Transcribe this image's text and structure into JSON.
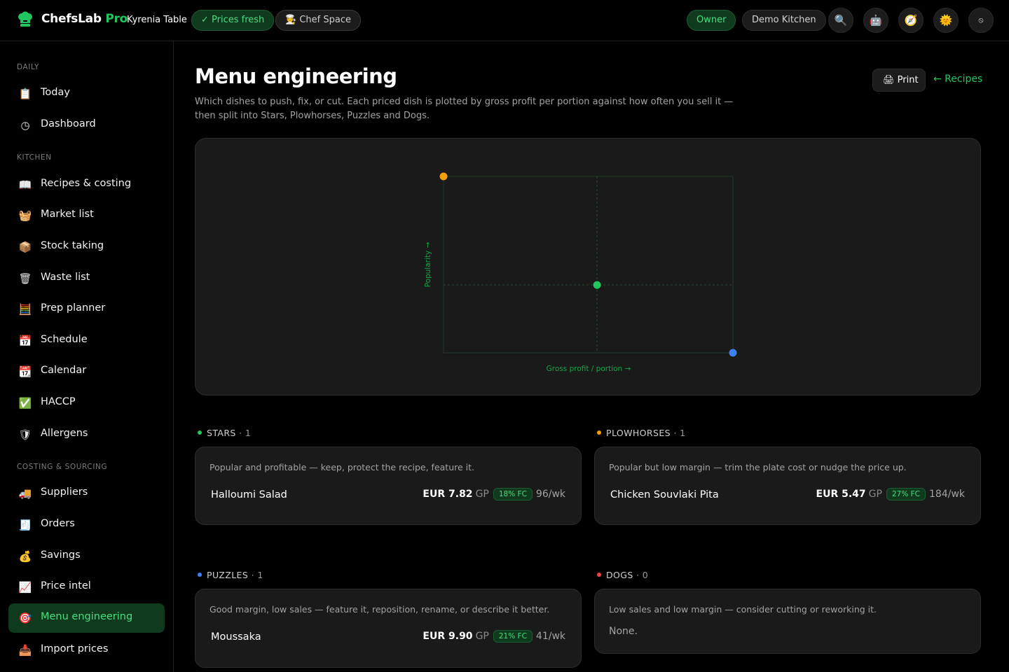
{
  "header": {
    "brand": "ChefsLab",
    "brand_suffix": "Pro",
    "kitchen": "Kyrenia Table",
    "prices_status": "✓ Prices fresh",
    "chef_space": "Chef Space",
    "role": "Owner",
    "demo": "Demo Kitchen"
  },
  "sidebar": {
    "sections": [
      {
        "label": "DAILY"
      },
      {
        "label": "KITCHEN"
      },
      {
        "label": "COSTING & SOURCING"
      }
    ],
    "items": [
      {
        "label": "Today",
        "icon": "📋"
      },
      {
        "label": "Dashboard",
        "icon": "◷"
      },
      {
        "label": "Recipes & costing",
        "icon": "📖"
      },
      {
        "label": "Market list",
        "icon": "🧺"
      },
      {
        "label": "Stock taking",
        "icon": "📦"
      },
      {
        "label": "Waste list",
        "icon": "🗑"
      },
      {
        "label": "Prep planner",
        "icon": "🧮"
      },
      {
        "label": "Schedule",
        "icon": "📅"
      },
      {
        "label": "Calendar",
        "icon": "📆"
      },
      {
        "label": "HACCP",
        "icon": "✅"
      },
      {
        "label": "Allergens",
        "icon": "🛡"
      },
      {
        "label": "Suppliers",
        "icon": "🚚"
      },
      {
        "label": "Orders",
        "icon": "🧾"
      },
      {
        "label": "Savings",
        "icon": "💰"
      },
      {
        "label": "Price intel",
        "icon": "📈"
      },
      {
        "label": "Menu engineering",
        "icon": "🎯"
      },
      {
        "label": "Import prices",
        "icon": "📥"
      }
    ]
  },
  "main": {
    "title": "Menu engineering",
    "description": "Which dishes to push, fix, or cut. Each priced dish is plotted by gross profit per portion against how often you sell it — then split into Stars, Plowhorses, Puzzles and Dogs.",
    "print_label": "Print",
    "back_link": "← Recipes"
  },
  "chart_data": {
    "type": "scatter",
    "xlabel": "Gross profit / portion →",
    "ylabel": "Popularity →",
    "points": [
      {
        "name": "Chicken Souvlaki Pita",
        "quadrant": "Plowhorses",
        "gp": 5.47,
        "popularity": 184,
        "color": "#f59e0b"
      },
      {
        "name": "Halloumi Salad",
        "quadrant": "Stars",
        "gp": 7.82,
        "popularity": 96,
        "color": "#22c55e"
      },
      {
        "name": "Moussaka",
        "quadrant": "Puzzles",
        "gp": 9.9,
        "popularity": 41,
        "color": "#3b82f6"
      }
    ],
    "grid": true
  },
  "groups": {
    "stars": {
      "title": "STARS",
      "count": "· 1",
      "color": "#22c55e",
      "description": "Popular and profitable — keep, protect the recipe, feature it.",
      "dish": "Halloumi Salad",
      "price": "EUR 7.82",
      "gp": "GP",
      "fc": "18% FC",
      "sales": "96/wk"
    },
    "plowhorses": {
      "title": "PLOWHORSES",
      "count": "· 1",
      "color": "#f59e0b",
      "description": "Popular but low margin — trim the plate cost or nudge the price up.",
      "dish": "Chicken Souvlaki Pita",
      "price": "EUR 5.47",
      "gp": "GP",
      "fc": "27% FC",
      "sales": "184/wk"
    },
    "puzzles": {
      "title": "PUZZLES",
      "count": "· 1",
      "color": "#3b82f6",
      "description": "Good margin, low sales — feature it, reposition, rename, or describe it better.",
      "dish": "Moussaka",
      "price": "EUR 9.90",
      "gp": "GP",
      "fc": "21% FC",
      "sales": "41/wk"
    },
    "dogs": {
      "title": "DOGS",
      "count": "· 0",
      "color": "#ef4444",
      "description": "Low sales and low margin — consider cutting or reworking it.",
      "empty": "None."
    }
  }
}
